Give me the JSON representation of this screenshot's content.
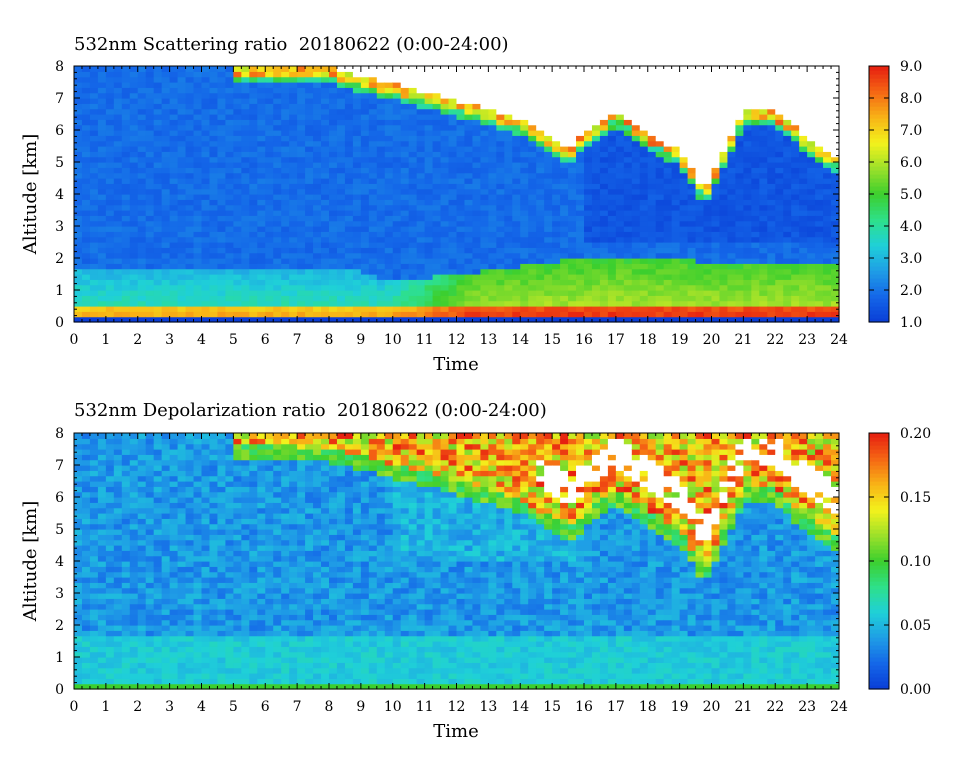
{
  "chart_data": [
    {
      "type": "heatmap",
      "title": "532nm Scattering ratio  20180622 (0:00-24:00)",
      "xlabel": "Time",
      "ylabel": "Altitude [km]",
      "xlim": [
        0,
        24
      ],
      "ylim": [
        0,
        8
      ],
      "x_ticks": [
        "0",
        "1",
        "2",
        "3",
        "4",
        "5",
        "6",
        "7",
        "8",
        "9",
        "10",
        "11",
        "12",
        "13",
        "14",
        "15",
        "16",
        "17",
        "18",
        "19",
        "20",
        "21",
        "22",
        "23",
        "24"
      ],
      "y_ticks": [
        "0",
        "1",
        "2",
        "3",
        "4",
        "5",
        "6",
        "7",
        "8"
      ],
      "colorbar": {
        "min": 1.0,
        "max": 9.0,
        "tick_labels": [
          "1.0",
          "2.0",
          "3.0",
          "4.0",
          "5.0",
          "6.0",
          "7.0",
          "8.0",
          "9.0"
        ]
      },
      "features": {
        "boundary_layer_top_km": [
          [
            0,
            1.6
          ],
          [
            9,
            1.6
          ],
          [
            10,
            1.3
          ],
          [
            12,
            1.5
          ],
          [
            15,
            1.9
          ],
          [
            17,
            2.0
          ],
          [
            20,
            1.9
          ],
          [
            24,
            1.8
          ]
        ],
        "cloud_base_km": [
          [
            5,
            7.9
          ],
          [
            8,
            7.8
          ],
          [
            12,
            6.8
          ],
          [
            14,
            6.2
          ],
          [
            15.5,
            5.3
          ],
          [
            17,
            6.5
          ],
          [
            18,
            5.8
          ],
          [
            19,
            5.2
          ],
          [
            19.8,
            4.0
          ],
          [
            21,
            6.5
          ],
          [
            22,
            6.5
          ],
          [
            23,
            5.6
          ],
          [
            24,
            5.0
          ]
        ]
      }
    },
    {
      "type": "heatmap",
      "title": "532nm Depolarization ratio  20180622 (0:00-24:00)",
      "xlabel": "Time",
      "ylabel": "Altitude [km]",
      "xlim": [
        0,
        24
      ],
      "ylim": [
        0,
        8
      ],
      "x_ticks": [
        "0",
        "1",
        "2",
        "3",
        "4",
        "5",
        "6",
        "7",
        "8",
        "9",
        "10",
        "11",
        "12",
        "13",
        "14",
        "15",
        "16",
        "17",
        "18",
        "19",
        "20",
        "21",
        "22",
        "23",
        "24"
      ],
      "y_ticks": [
        "0",
        "1",
        "2",
        "3",
        "4",
        "5",
        "6",
        "7",
        "8"
      ],
      "colorbar": {
        "min": 0.0,
        "max": 0.2,
        "tick_labels": [
          "0.00",
          "0.05",
          "0.10",
          "0.15",
          "0.20"
        ]
      }
    }
  ],
  "colormap": [
    "#0a3dd6",
    "#1466e8",
    "#1f9de6",
    "#1fd0d8",
    "#2ee08a",
    "#3ccf2e",
    "#9be02a",
    "#f3f21c",
    "#f8b416",
    "#f56714",
    "#e61e10"
  ]
}
